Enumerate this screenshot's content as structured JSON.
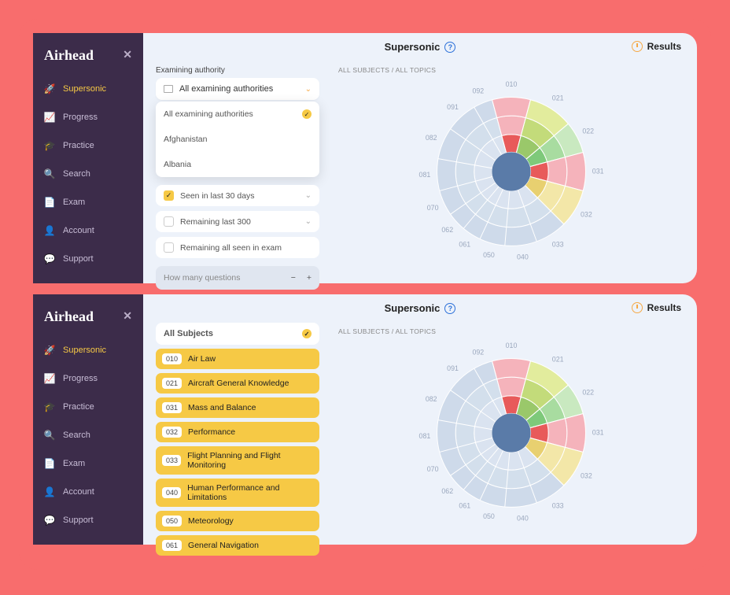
{
  "brand": "Airhead",
  "nav": {
    "items": [
      {
        "icon": "🚀",
        "label": "Supersonic",
        "active": true
      },
      {
        "icon": "📈",
        "label": "Progress",
        "active": false
      },
      {
        "icon": "🎓",
        "label": "Practice",
        "active": false
      },
      {
        "icon": "🔍",
        "label": "Search",
        "active": false
      },
      {
        "icon": "📄",
        "label": "Exam",
        "active": false
      },
      {
        "icon": "👤",
        "label": "Account",
        "active": false
      },
      {
        "icon": "💬",
        "label": "Support",
        "active": false
      }
    ]
  },
  "header": {
    "title": "Supersonic",
    "results": "Results"
  },
  "breadcrumb": "ALL SUBJECTS / ALL TOPICS",
  "panel1": {
    "authority_label": "Examining authority",
    "dropdown_value": "All examining authorities",
    "dropdown_options": [
      {
        "label": "All examining authorities",
        "selected": true
      },
      {
        "label": "Afghanistan",
        "selected": false
      },
      {
        "label": "Albania",
        "selected": false
      }
    ],
    "filters": [
      {
        "label": "Seen in last 30 days",
        "checked": true,
        "expandable": true
      },
      {
        "label": "Remaining last 300",
        "checked": false,
        "expandable": true
      },
      {
        "label": "Remaining all seen in exam",
        "checked": false,
        "expandable": false
      }
    ],
    "qcount_placeholder": "How many questions"
  },
  "panel2": {
    "all_subjects": "All Subjects",
    "subjects": [
      {
        "code": "010",
        "label": "Air Law"
      },
      {
        "code": "021",
        "label": "Aircraft General Knowledge"
      },
      {
        "code": "031",
        "label": "Mass and Balance"
      },
      {
        "code": "032",
        "label": "Performance"
      },
      {
        "code": "033",
        "label": "Flight Planning and Flight Monitoring"
      },
      {
        "code": "040",
        "label": "Human Performance and Limitations"
      },
      {
        "code": "050",
        "label": "Meteorology"
      },
      {
        "code": "061",
        "label": "General Navigation"
      }
    ]
  },
  "chart": {
    "type": "sunburst",
    "background": "#edf2fa",
    "ring_base": "#b7c9de",
    "slices": [
      {
        "code": "010",
        "angle_start": -15,
        "angle_end": 15,
        "colors": [
          "#f5b3bb",
          "#f5b3bb",
          "#e85a5a"
        ]
      },
      {
        "code": "021",
        "angle_start": 15,
        "angle_end": 50,
        "colors": [
          "#e2ec9d",
          "#c3db7a",
          "#9ac86a"
        ]
      },
      {
        "code": "022",
        "angle_start": 50,
        "angle_end": 75,
        "colors": [
          "#c9e9c0",
          "#a8dca0",
          "#7ec97a"
        ]
      },
      {
        "code": "031",
        "angle_start": 75,
        "angle_end": 105,
        "colors": [
          "#f5b3bb",
          "#f5b3bb",
          "#e85a5a"
        ]
      },
      {
        "code": "032",
        "angle_start": 105,
        "angle_end": 135,
        "colors": [
          "#f3e7a8",
          "#f3e7a8",
          "#e8d070"
        ]
      },
      {
        "code": "033",
        "angle_start": 135,
        "angle_end": 160,
        "colors": [
          "#b7c9de",
          "#b7c9de",
          "#b7c9de"
        ]
      },
      {
        "code": "040",
        "angle_start": 160,
        "angle_end": 185,
        "colors": [
          "#b7c9de",
          "#b7c9de",
          "#b7c9de"
        ]
      },
      {
        "code": "050",
        "angle_start": 185,
        "angle_end": 205,
        "colors": [
          "#b7c9de",
          "#b7c9de",
          "#b7c9de"
        ]
      },
      {
        "code": "061",
        "angle_start": 205,
        "angle_end": 220,
        "colors": [
          "#b7c9de",
          "#b7c9de",
          "#b7c9de"
        ]
      },
      {
        "code": "062",
        "angle_start": 220,
        "angle_end": 235,
        "colors": [
          "#b7c9de",
          "#b7c9de",
          "#b7c9de"
        ]
      },
      {
        "code": "070",
        "angle_start": 235,
        "angle_end": 255,
        "colors": [
          "#b7c9de",
          "#b7c9de",
          "#b7c9de"
        ]
      },
      {
        "code": "081",
        "angle_start": 255,
        "angle_end": 280,
        "colors": [
          "#b7c9de",
          "#b7c9de",
          "#b7c9de"
        ]
      },
      {
        "code": "082",
        "angle_start": 280,
        "angle_end": 305,
        "colors": [
          "#b7c9de",
          "#b7c9de",
          "#b7c9de"
        ]
      },
      {
        "code": "091",
        "angle_start": 305,
        "angle_end": 330,
        "colors": [
          "#b7c9de",
          "#b7c9de",
          "#b7c9de"
        ]
      },
      {
        "code": "092",
        "angle_start": 330,
        "angle_end": 345,
        "colors": [
          "#b7c9de",
          "#b7c9de",
          "#b7c9de"
        ]
      }
    ],
    "radii": [
      25,
      48,
      72,
      96
    ],
    "label_radius": 112,
    "label_color": "#9aa7bd",
    "label_fontsize": 9
  }
}
